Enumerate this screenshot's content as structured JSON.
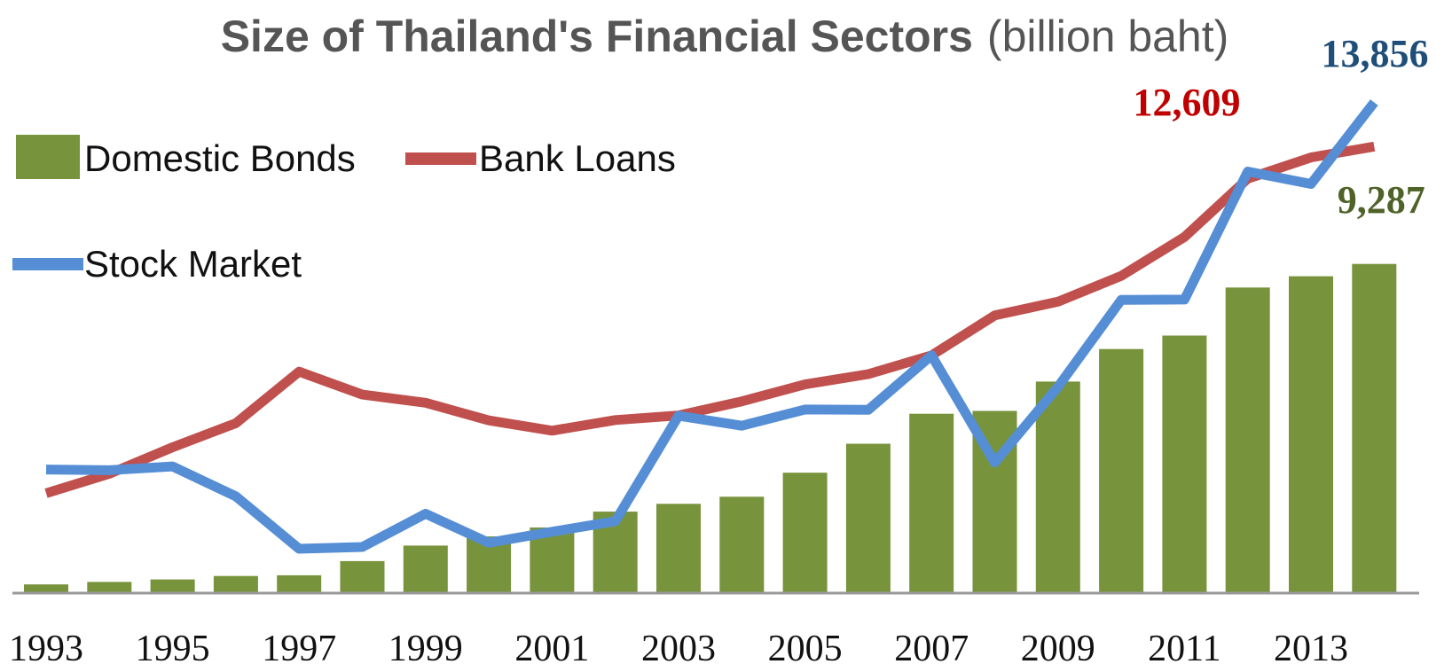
{
  "chart_data": {
    "type": "bar",
    "title": "Size of Thailand's Financial Sectors",
    "title_unit": "(billion baht)",
    "x": [
      1993,
      1994,
      1995,
      1996,
      1997,
      1998,
      1999,
      2000,
      2001,
      2002,
      2003,
      2004,
      2005,
      2006,
      2007,
      2008,
      2009,
      2010,
      2011,
      2012,
      2013,
      2014
    ],
    "x_tick_labels": [
      "1993",
      "1995",
      "1997",
      "1999",
      "2001",
      "2003",
      "2005",
      "2007",
      "2009",
      "2011",
      "2013"
    ],
    "ylim": [
      0,
      15500
    ],
    "grid": false,
    "legend_position": "top-left",
    "series": [
      {
        "name": "Domestic Bonds",
        "type": "bar",
        "color": "#77933c",
        "values": [
          220,
          290,
          360,
          460,
          480,
          880,
          1320,
          1580,
          1830,
          2280,
          2500,
          2700,
          3380,
          4200,
          5050,
          5130,
          5960,
          6880,
          7260,
          8620,
          8940,
          9287
        ]
      },
      {
        "name": "Bank Loans",
        "type": "line",
        "color": "#c0504d",
        "values": [
          2800,
          3350,
          4100,
          4780,
          6240,
          5590,
          5360,
          4860,
          4570,
          4870,
          5000,
          5400,
          5880,
          6170,
          6700,
          7830,
          8220,
          8950,
          10050,
          11700,
          12300,
          12609
        ]
      },
      {
        "name": "Stock Market",
        "type": "line",
        "color": "#558ed5",
        "values": [
          3470,
          3450,
          3560,
          2710,
          1230,
          1280,
          2220,
          1400,
          1710,
          2010,
          4990,
          4710,
          5170,
          5160,
          6700,
          3670,
          5810,
          8270,
          8280,
          11900,
          11550,
          13856
        ]
      }
    ],
    "annotations": [
      {
        "text": "12,609",
        "series": "Bank Loans",
        "color": "#c00000"
      },
      {
        "text": "13,856",
        "series": "Stock Market",
        "color": "#1f4e79"
      },
      {
        "text": "9,287",
        "series": "Domestic Bonds",
        "color": "#4f6228"
      }
    ]
  }
}
